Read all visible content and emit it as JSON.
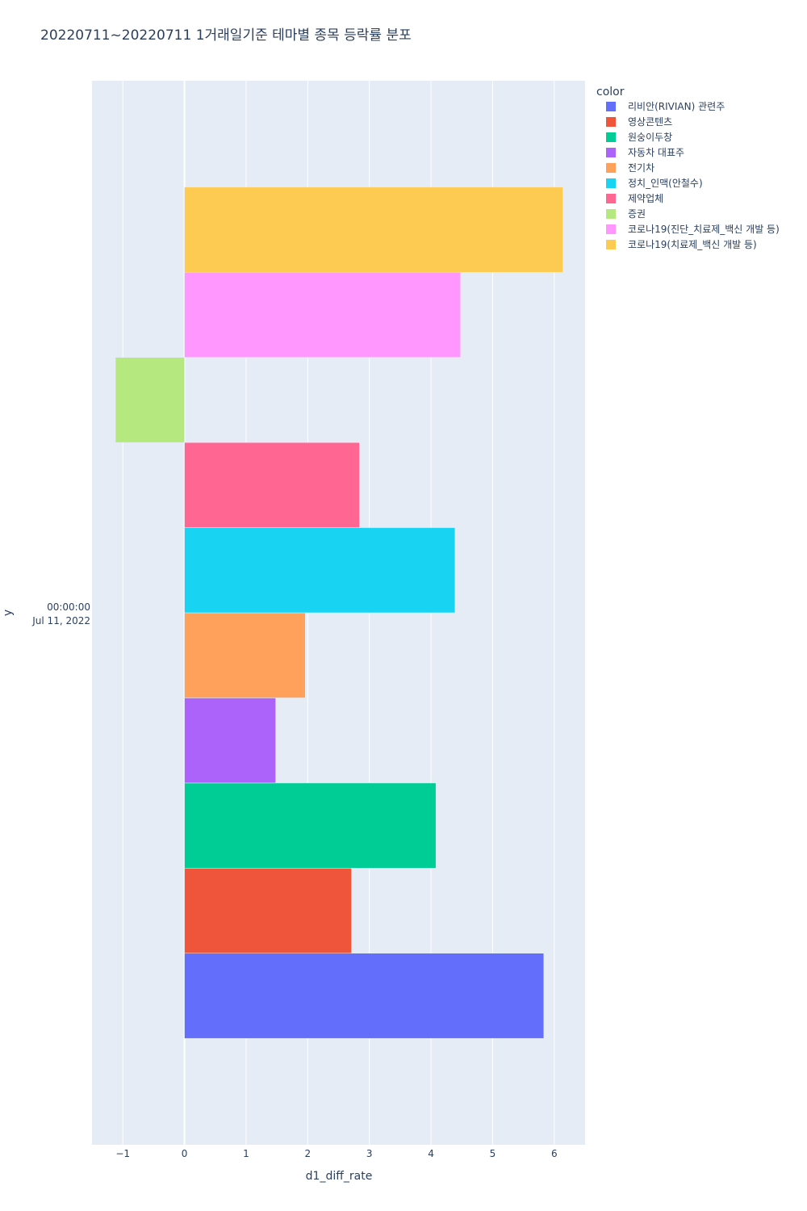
{
  "chart_data": {
    "type": "bar",
    "orientation": "horizontal",
    "barmode": "group",
    "title": "20220711~20220711 1거래일기준 테마별 종목 등락률 분포",
    "xlabel": "d1_diff_rate",
    "ylabel": "y",
    "y_category": [
      "00:00:00",
      "Jul 11, 2022"
    ],
    "xlim": [
      -1.5,
      6.5
    ],
    "xticks": [
      -1,
      0,
      1,
      2,
      3,
      4,
      5,
      6
    ],
    "xtick_labels": [
      "−1",
      "0",
      "1",
      "2",
      "3",
      "4",
      "5",
      "6"
    ],
    "grid": true,
    "legend_title": "color",
    "legend_position": "top-right",
    "series": [
      {
        "name": "리비안(RIVIAN) 관련주",
        "value": 5.83,
        "color": "#636efa"
      },
      {
        "name": "영상콘텐츠",
        "value": 2.71,
        "color": "#EF553B"
      },
      {
        "name": "원숭이두창",
        "value": 4.08,
        "color": "#00cc96"
      },
      {
        "name": "자동차 대표주",
        "value": 1.48,
        "color": "#ab63fa"
      },
      {
        "name": "전기차",
        "value": 1.96,
        "color": "#FFA15A"
      },
      {
        "name": "정치_인맥(안철수)",
        "value": 4.39,
        "color": "#19d3f3"
      },
      {
        "name": "제약업체",
        "value": 2.84,
        "color": "#FF6692"
      },
      {
        "name": "증권",
        "value": -1.12,
        "color": "#B6E880"
      },
      {
        "name": "코로나19(진단_치료제_백신 개발 등)",
        "value": 4.48,
        "color": "#FF97FF"
      },
      {
        "name": "코로나19(치료제_백신 개발 등)",
        "value": 6.14,
        "color": "#FECB52"
      }
    ]
  }
}
